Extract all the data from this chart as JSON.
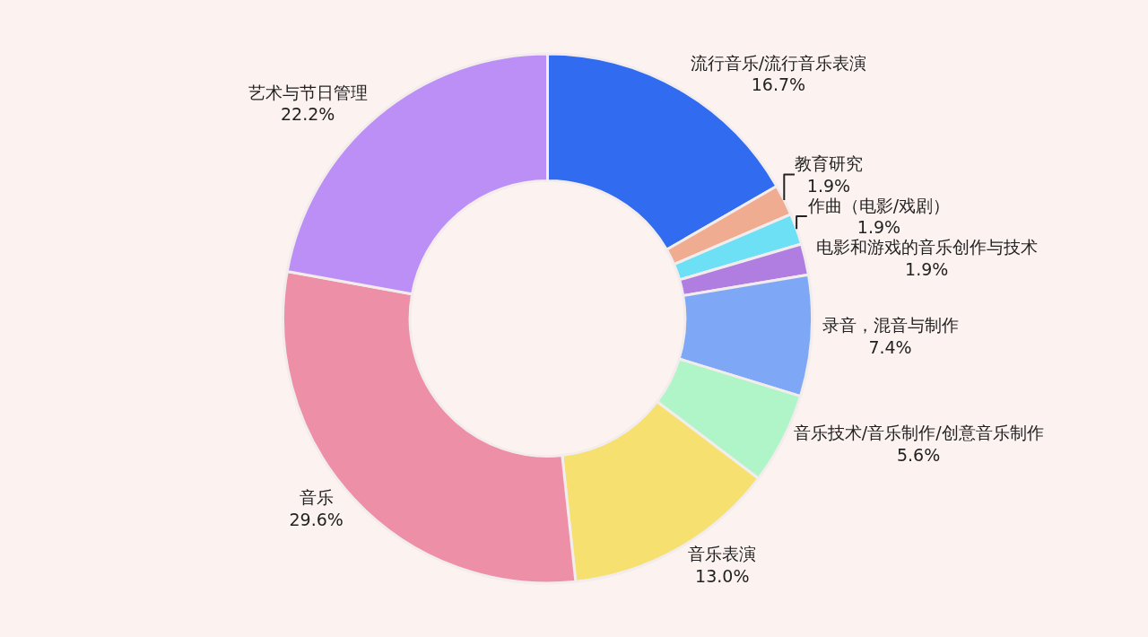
{
  "chart_data": {
    "type": "donut",
    "categories": [
      "流行音乐/流行音乐表演",
      "教育研究",
      "作曲（电影/戏剧）",
      "电影和游戏的音乐创作与技术",
      "录音，混音与制作",
      "音乐技术/音乐制作/创意音乐制作",
      "音乐表演",
      "音乐",
      "艺术与节日管理"
    ],
    "values": [
      16.7,
      1.9,
      1.9,
      1.9,
      7.4,
      5.6,
      13.0,
      29.6,
      22.2
    ],
    "value_labels": [
      "16.7%",
      "1.9%",
      "1.9%",
      "1.9%",
      "7.4%",
      "5.6%",
      "13.0%",
      "29.6%",
      "22.2%"
    ],
    "colors": [
      "#316cf0",
      "#f0ac90",
      "#6ee0f5",
      "#b07ee0",
      "#7ea8f5",
      "#b0f5c8",
      "#f5e070",
      "#ee8fa8",
      "#bb8ff5"
    ],
    "legend": false
  }
}
